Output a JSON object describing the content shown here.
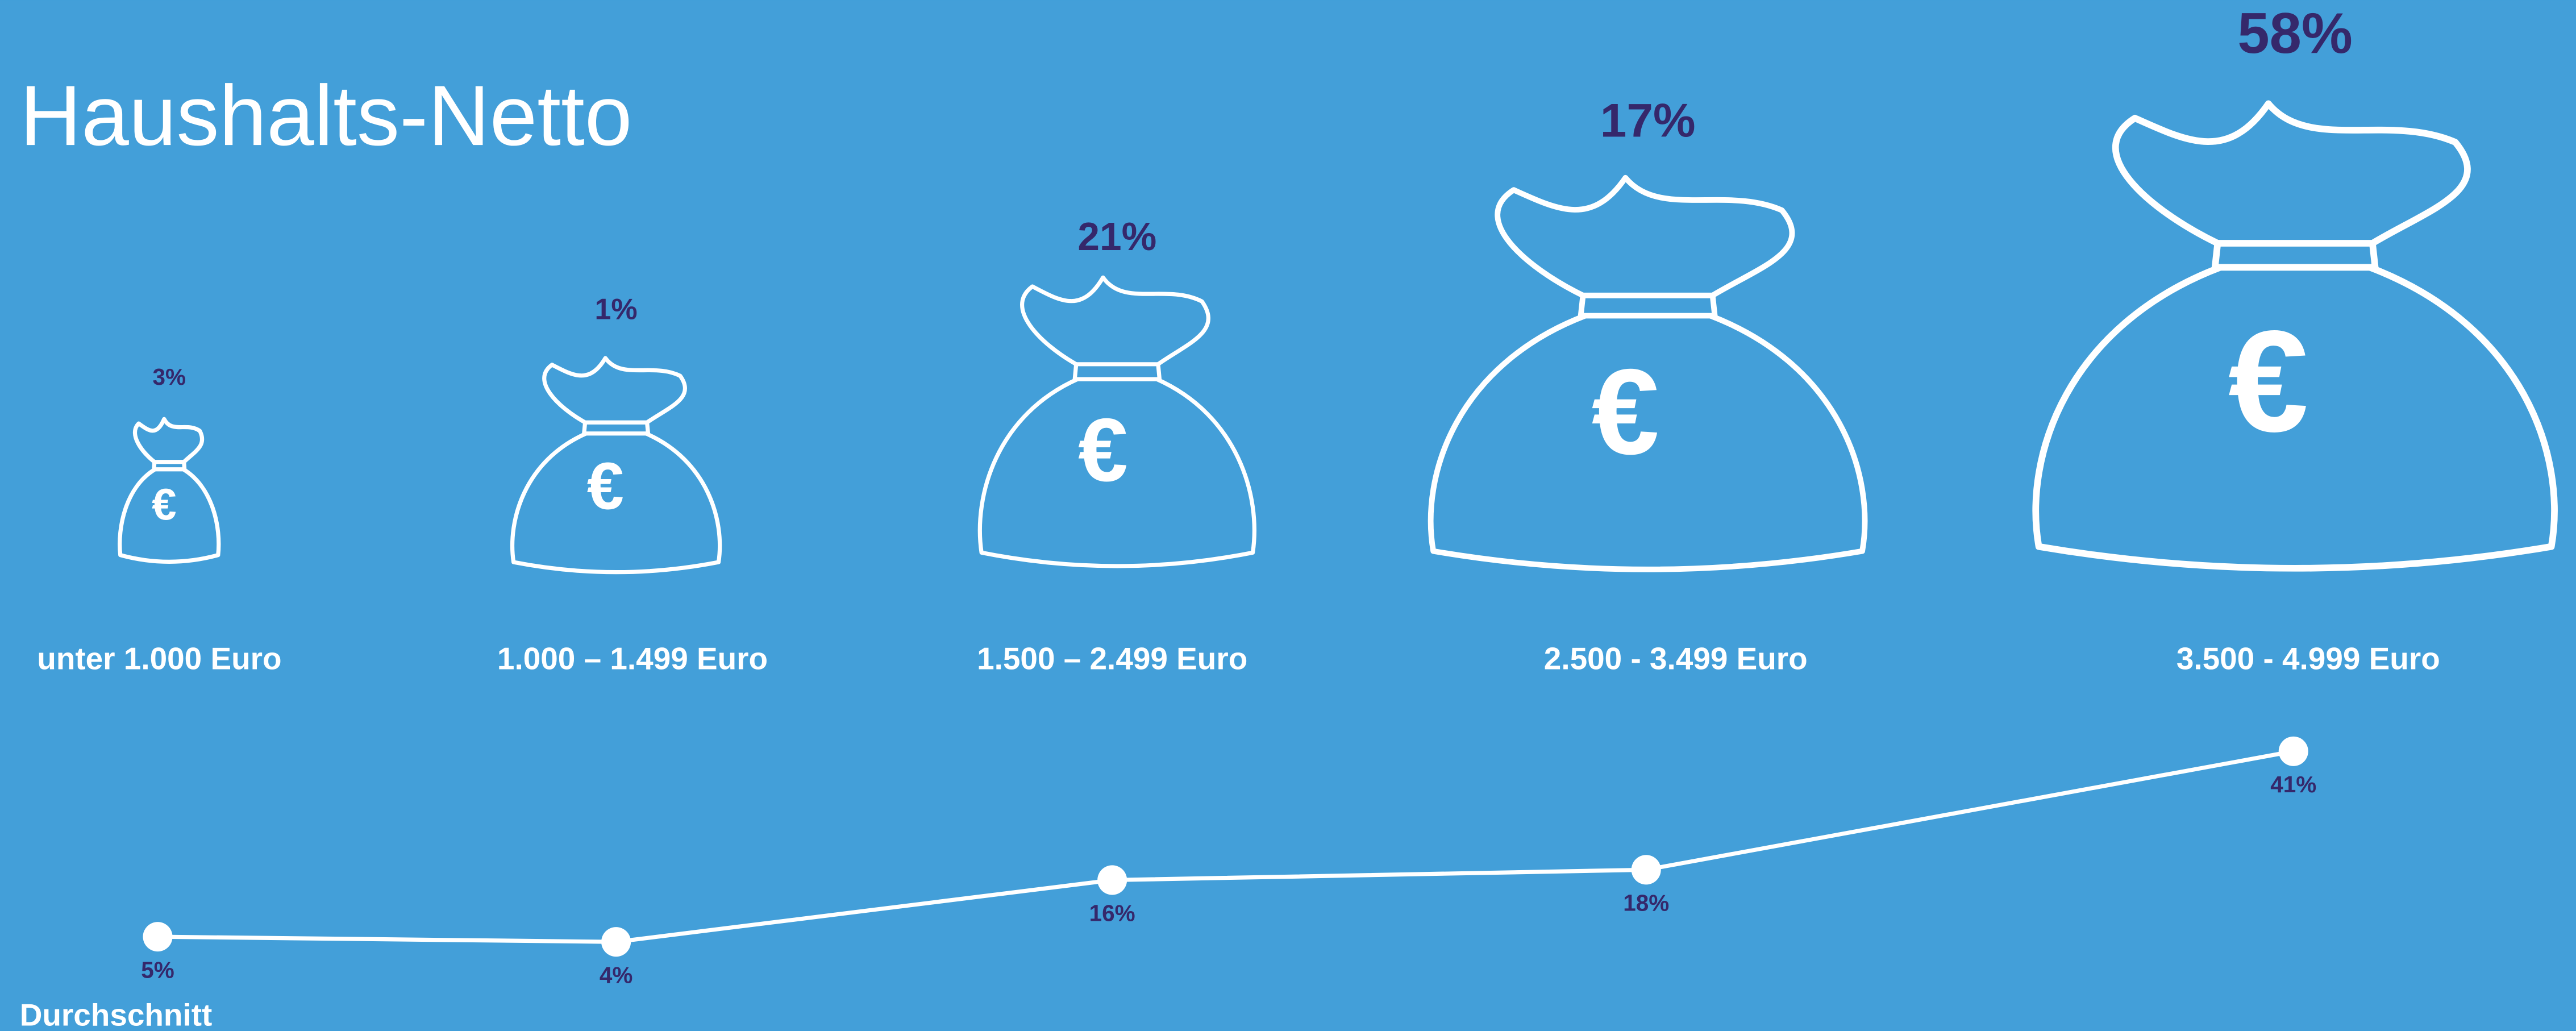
{
  "chart_data": {
    "type": "line",
    "title": "Haushalts-Netto",
    "categories": [
      "unter 1.000 Euro",
      "1.000 – 1.499 Euro",
      "1.500 – 2.499 Euro",
      "2.500 - 3.499 Euro",
      "3.500 - 4.999 Euro"
    ],
    "series": [
      {
        "values": [
          3,
          1,
          21,
          17,
          58
        ],
        "value_labels": [
          "3%",
          "1%",
          "21%",
          "17%",
          "58%"
        ],
        "color": "#ffffff"
      },
      {
        "name": "Durchschnitt",
        "values": [
          5,
          4,
          16,
          18,
          41
        ],
        "value_labels": [
          "5%",
          "4%",
          "16%",
          "18%",
          "41%"
        ],
        "color": "#ffffff"
      }
    ]
  }
}
